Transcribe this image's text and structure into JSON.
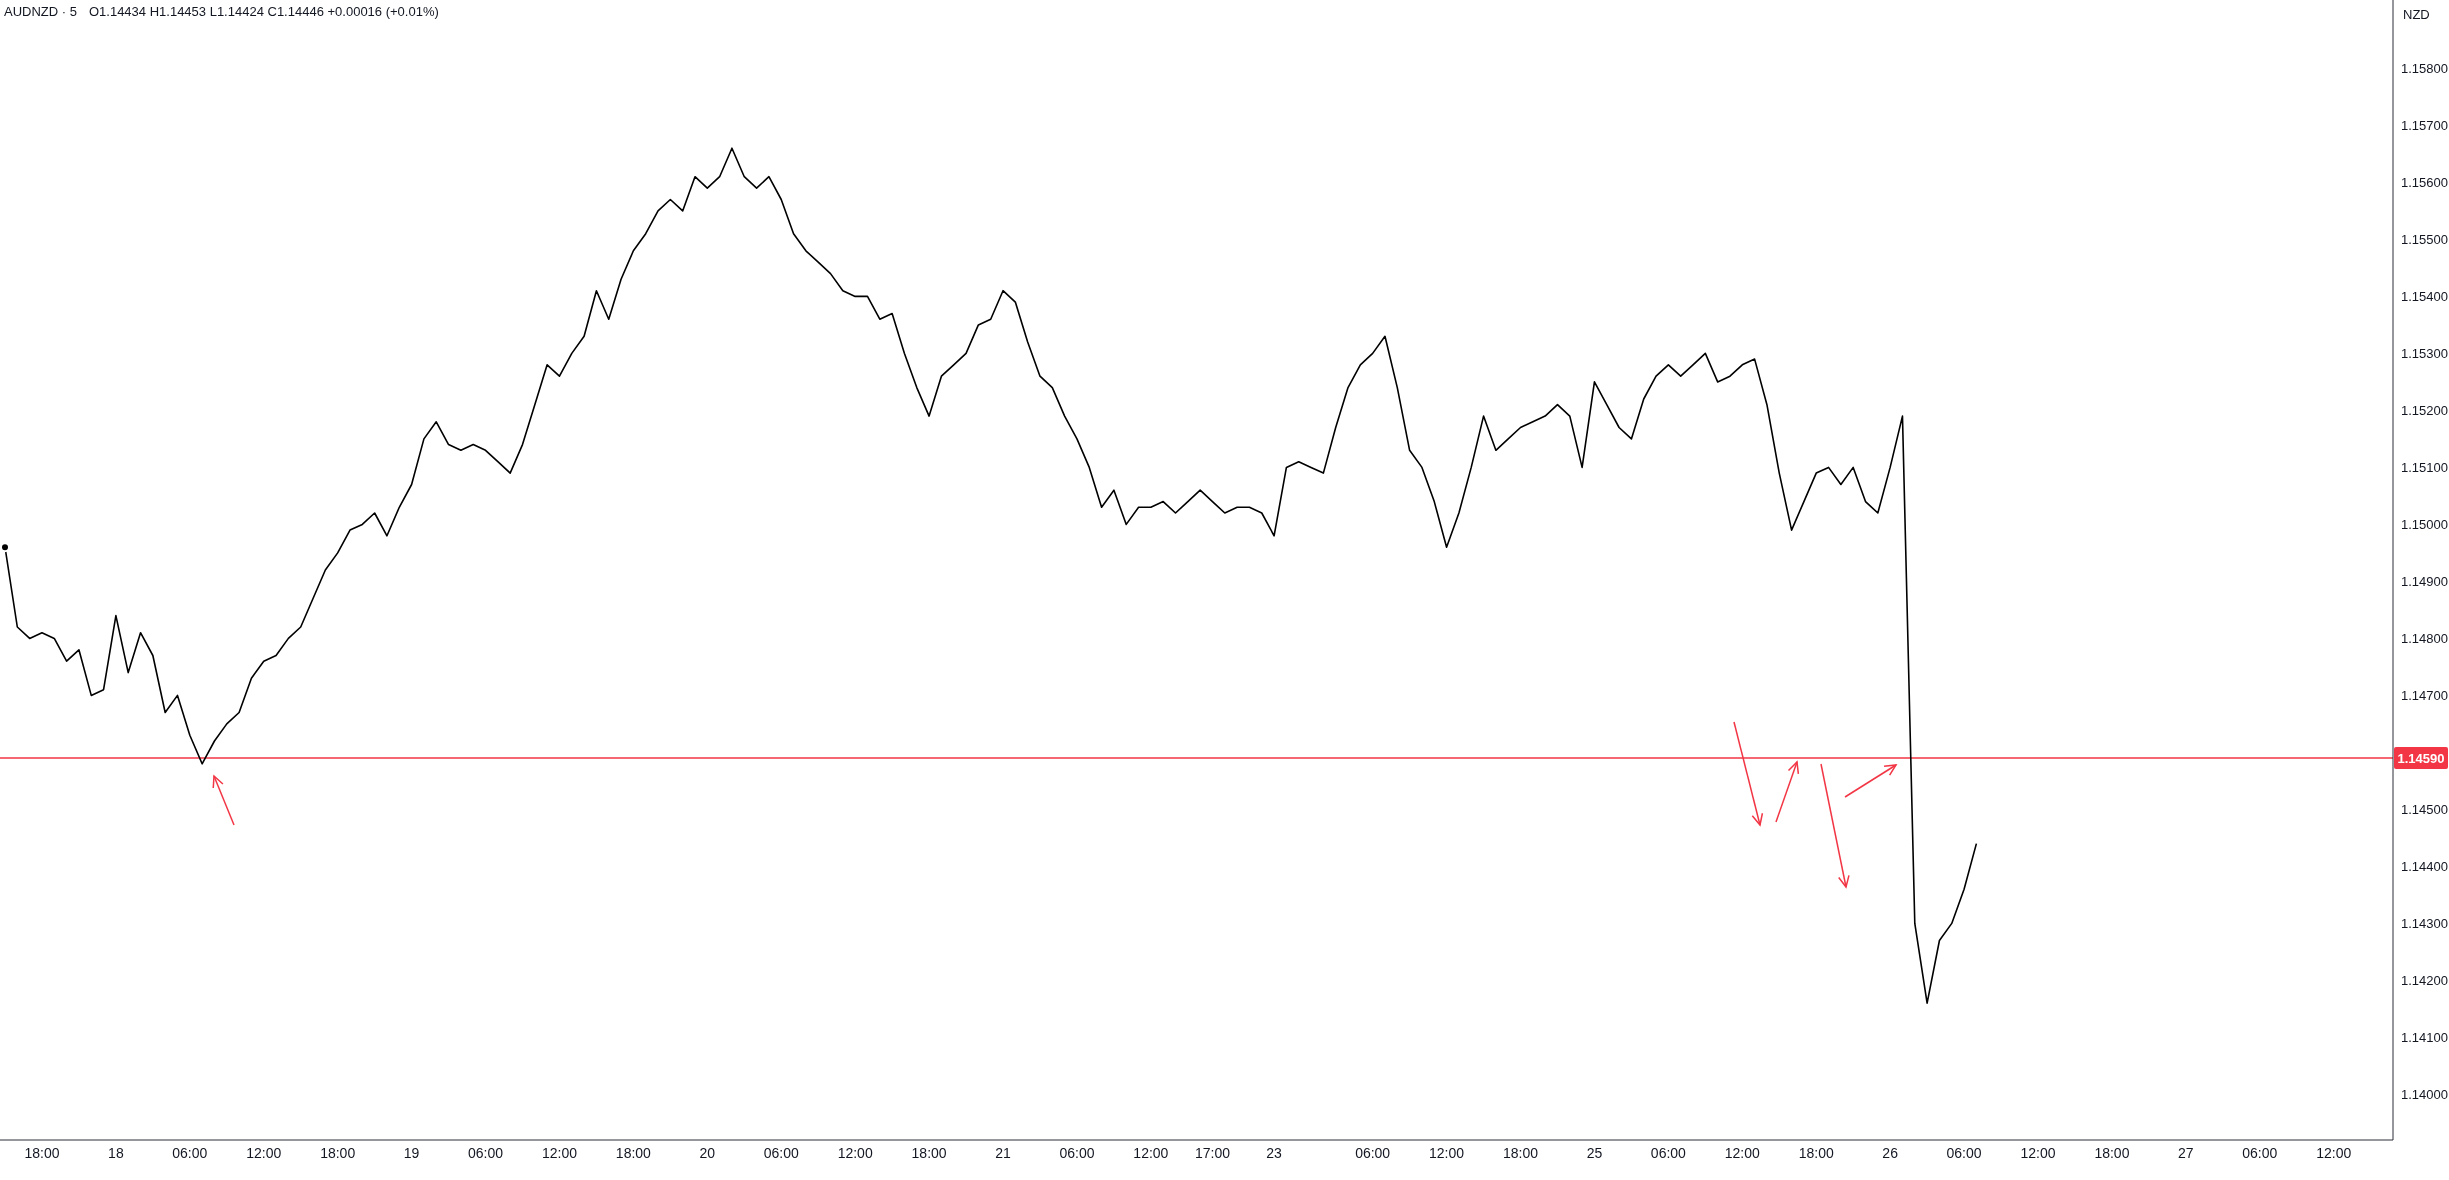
{
  "chart_data": {
    "type": "line",
    "title": "AUDNZD · 5",
    "subtitle": "O1.14434  H1.14453  L1.14424  C1.14446  +0.00016 (+0.01%)",
    "ylabel": "NZD",
    "categories": [
      null,
      null,
      null,
      "18:00",
      null,
      null,
      null,
      null,
      null,
      "18",
      null,
      null,
      null,
      null,
      null,
      "06:00",
      null,
      null,
      null,
      null,
      null,
      "12:00",
      null,
      null,
      null,
      null,
      null,
      "18:00",
      null,
      null,
      null,
      null,
      null,
      "19",
      null,
      null,
      null,
      null,
      null,
      "06:00",
      null,
      null,
      null,
      null,
      null,
      "12:00",
      null,
      null,
      null,
      null,
      null,
      "18:00",
      null,
      null,
      null,
      null,
      null,
      "20",
      null,
      null,
      null,
      null,
      null,
      "06:00",
      null,
      null,
      null,
      null,
      null,
      "12:00",
      null,
      null,
      null,
      null,
      null,
      "18:00",
      null,
      null,
      null,
      null,
      null,
      "21",
      null,
      null,
      null,
      null,
      null,
      "06:00",
      null,
      null,
      null,
      null,
      null,
      "12:00",
      null,
      null,
      null,
      null,
      "17:00",
      null,
      null,
      null,
      null,
      "23",
      null,
      null,
      null,
      null,
      null,
      null,
      null,
      "06:00",
      null,
      null,
      null,
      null,
      null,
      "12:00",
      null,
      null,
      null,
      null,
      null,
      "18:00",
      null,
      null,
      null,
      null,
      null,
      "25",
      null,
      null,
      null,
      null,
      null,
      "06:00",
      null,
      null,
      null,
      null,
      null,
      "12:00",
      null,
      null,
      null,
      null,
      null,
      "18:00",
      null,
      null,
      null,
      null,
      null,
      "26",
      null,
      null,
      null,
      null,
      null,
      "06:00",
      null,
      null,
      null,
      null,
      null,
      "12:00",
      null,
      null,
      null,
      null,
      null,
      "18:00",
      null,
      null,
      null,
      null,
      null,
      "27",
      null,
      null,
      null,
      null,
      null,
      "06:00",
      null,
      null,
      null,
      null,
      null,
      "12:00",
      null,
      null,
      null,
      null
    ],
    "series": [
      {
        "color": "#000000",
        "values": [
          1.1496,
          1.1482,
          1.148,
          1.1481,
          1.148,
          1.1476,
          1.1478,
          1.147,
          1.1471,
          1.1484,
          1.1474,
          1.1481,
          1.1477,
          1.1467,
          1.147,
          1.1463,
          1.1458,
          1.1462,
          1.1465,
          1.1467,
          1.1473,
          1.1476,
          1.1477,
          1.148,
          1.1482,
          1.1487,
          1.1492,
          1.1495,
          1.1499,
          1.15,
          1.1502,
          1.1498,
          1.1503,
          1.1507,
          1.1515,
          1.1518,
          1.1514,
          1.1513,
          1.1514,
          1.1513,
          1.1511,
          1.1509,
          1.1514,
          1.1521,
          1.1528,
          1.1526,
          1.153,
          1.1533,
          1.1541,
          1.1536,
          1.1543,
          1.1548,
          1.1551,
          1.1555,
          1.1557,
          1.1555,
          1.1561,
          1.1559,
          1.1561,
          1.1566,
          1.1561,
          1.1559,
          1.1561,
          1.1557,
          1.1551,
          1.1548,
          1.1546,
          1.1544,
          1.1541,
          1.154,
          1.154,
          1.1536,
          1.1537,
          1.153,
          1.1524,
          1.1519,
          1.1526,
          1.1528,
          1.153,
          1.1535,
          1.1536,
          1.1541,
          1.1539,
          1.1532,
          1.1526,
          1.1524,
          1.1519,
          1.1515,
          1.151,
          1.1503,
          1.1506,
          1.15,
          1.1503,
          1.1503,
          1.1504,
          1.1502,
          1.1504,
          1.1506,
          1.1504,
          1.1502,
          1.1503,
          1.1503,
          1.1502,
          1.1498,
          1.151,
          1.1511,
          1.151,
          1.1509,
          1.1517,
          1.1524,
          1.1528,
          1.153,
          1.1533,
          1.1524,
          1.1513,
          1.151,
          1.1504,
          1.1496,
          1.1502,
          1.151,
          1.1519,
          1.1513,
          1.1515,
          1.1517,
          1.1518,
          1.1519,
          1.1521,
          1.1519,
          1.151,
          1.1525,
          1.1521,
          1.1517,
          1.1515,
          1.1522,
          1.1526,
          1.1528,
          1.1526,
          1.1528,
          1.153,
          1.1525,
          1.1526,
          1.1528,
          1.1529,
          1.1521,
          1.1509,
          1.1499,
          1.1504,
          1.1509,
          1.151,
          1.1507,
          1.151,
          1.1504,
          1.1502,
          1.151,
          1.1519,
          1.143,
          1.1416,
          1.1427,
          1.143,
          1.1436,
          1.1444,
          null,
          null,
          null,
          null,
          null,
          null,
          null,
          null,
          null,
          null,
          null,
          null,
          null,
          null,
          null,
          null,
          null,
          null,
          null,
          null,
          null,
          null,
          null,
          null,
          null,
          null,
          null,
          null,
          null,
          null,
          null,
          null,
          null
        ]
      }
    ],
    "ylim": [
      1.1392,
      1.1592
    ],
    "yticks": [
      {
        "value": 1.14,
        "label": "1.14000"
      },
      {
        "value": 1.141,
        "label": "1.14100"
      },
      {
        "value": 1.142,
        "label": "1.14200"
      },
      {
        "value": 1.143,
        "label": "1.14300"
      },
      {
        "value": 1.144,
        "label": "1.14400"
      },
      {
        "value": 1.145,
        "label": "1.14500"
      },
      {
        "value": 1.147,
        "label": "1.14700"
      },
      {
        "value": 1.148,
        "label": "1.14800"
      },
      {
        "value": 1.149,
        "label": "1.14900"
      },
      {
        "value": 1.15,
        "label": "1.15000"
      },
      {
        "value": 1.151,
        "label": "1.15100"
      },
      {
        "value": 1.152,
        "label": "1.15200"
      },
      {
        "value": 1.153,
        "label": "1.15300"
      },
      {
        "value": 1.154,
        "label": "1.15400"
      },
      {
        "value": 1.155,
        "label": "1.15500"
      },
      {
        "value": 1.156,
        "label": "1.15600"
      },
      {
        "value": 1.157,
        "label": "1.15700"
      },
      {
        "value": 1.158,
        "label": "1.15800"
      }
    ],
    "ref_lines": [
      {
        "axis": "y",
        "value": 1.1459,
        "label": "1.14590",
        "color": "#f23645"
      }
    ]
  }
}
